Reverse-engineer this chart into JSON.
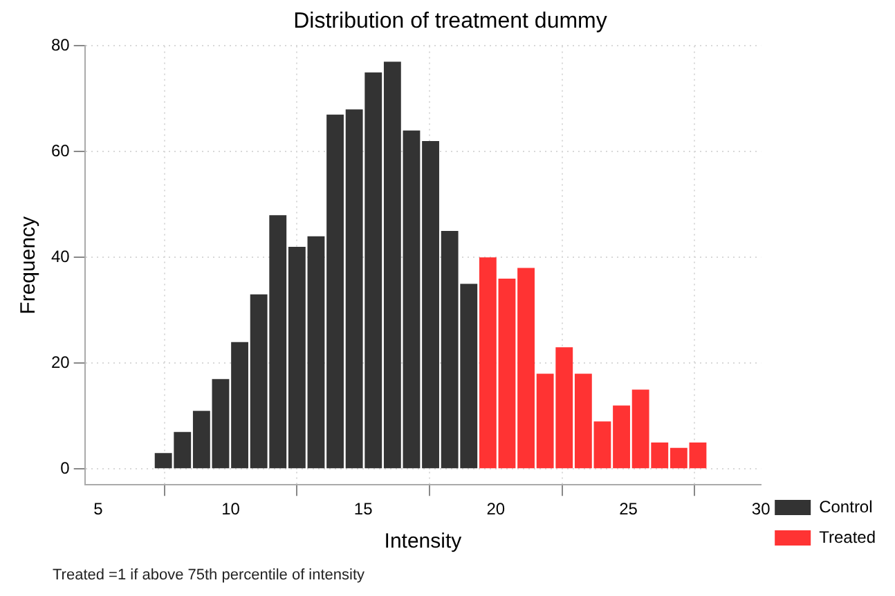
{
  "chart_data": {
    "type": "histogram",
    "title": "Distribution of treatment dummy",
    "xlabel": "Intensity",
    "ylabel": "Frequency",
    "bins": [
      7.1,
      7.82,
      8.54,
      9.26,
      9.98,
      10.7,
      11.42,
      12.14,
      12.86,
      13.58,
      14.3,
      15.02,
      15.74,
      16.46,
      17.18,
      17.9,
      18.62,
      19.34,
      20.06,
      20.78,
      21.5,
      22.22,
      22.94,
      23.66,
      24.38,
      25.1,
      25.82,
      26.54,
      27.26,
      27.98
    ],
    "series": [
      {
        "name": "Control",
        "color": "#333333",
        "values": [
          3,
          7,
          11,
          17,
          24,
          33,
          48,
          42,
          44,
          67,
          68,
          75,
          77,
          64,
          62,
          45,
          35,
          null,
          null,
          null,
          null,
          null,
          null,
          null,
          null,
          null,
          null,
          null,
          null
        ]
      },
      {
        "name": "Treated",
        "color": "#ff3333",
        "values": [
          null,
          null,
          null,
          null,
          null,
          null,
          null,
          null,
          null,
          null,
          null,
          null,
          null,
          null,
          null,
          null,
          null,
          40,
          36,
          38,
          18,
          23,
          18,
          9,
          12,
          15,
          5,
          4,
          5
        ]
      }
    ],
    "xlim": [
      4.5,
      30
    ],
    "xticks": [
      5,
      10,
      15,
      20,
      25,
      30
    ],
    "ylim": [
      -3,
      80
    ],
    "yticks": [
      0,
      20,
      40,
      60,
      80
    ],
    "grid": true,
    "legend": "bottom right",
    "annotations": [
      "Treated =1 if above 75th percentile of intensity"
    ]
  }
}
